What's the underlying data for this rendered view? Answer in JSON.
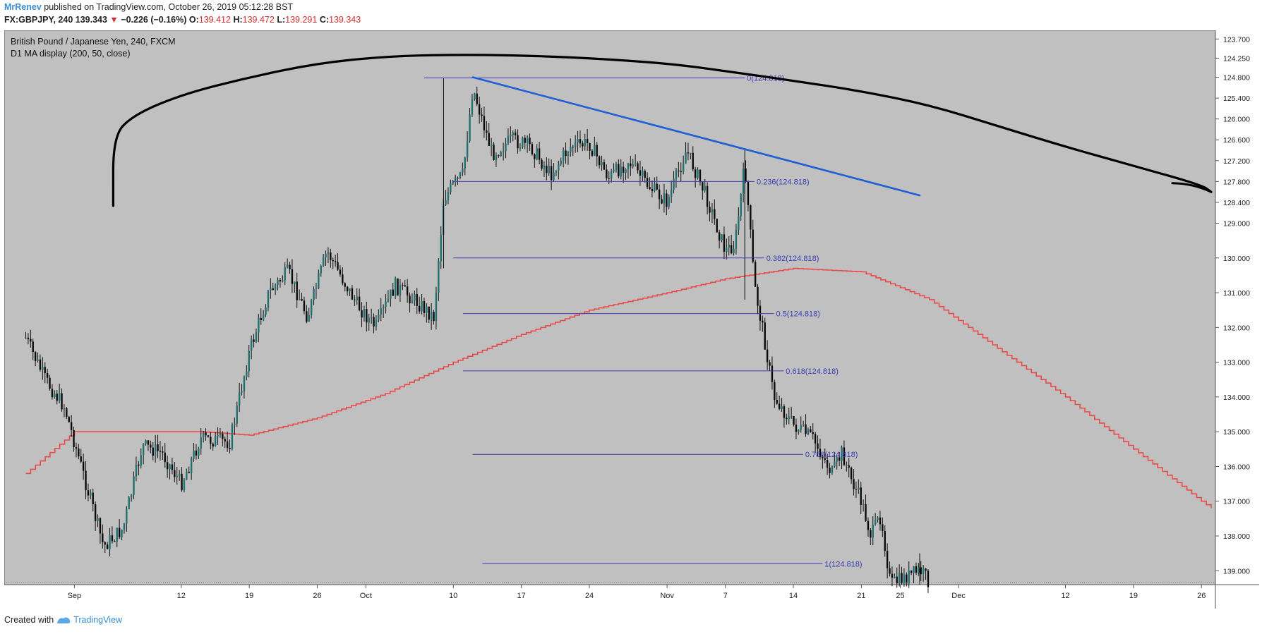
{
  "header": {
    "author": "MrRenev",
    "published_text": " published on TradingView.com, October 26, 2019 05:12:28 BST"
  },
  "quote": {
    "symbol": "FX:GBPJPY, 240",
    "last": "139.343",
    "arrow": "▼",
    "change": "−0.226 (−0.16%)",
    "open_label": "O:",
    "open": "139.412",
    "high_label": "H:",
    "high": "139.472",
    "low_label": "L:",
    "low": "139.291",
    "close_label": "C:",
    "close": "139.343"
  },
  "legend": {
    "title": "British Pound / Japanese Yen, 240, FXCM",
    "indicator": "D1 MA display (200, 50, close)"
  },
  "footer": {
    "created_with": "Created with",
    "brand": "TradingView"
  },
  "colors": {
    "background": "#c0c0c0",
    "candle": "#0b0b0b",
    "candle_accent": "#1f6f73",
    "ma_line": "#e84a4a",
    "black_curve": "#000000",
    "trendline": "#1e5fd6",
    "fib": "#3b3bb5",
    "fib_text": "#3b3bb5"
  },
  "chart_data": {
    "type": "candlestick",
    "title": "British Pound / Japanese Yen, 240, FXCM",
    "y_axis": {
      "inverted": true,
      "ylim": [
        123.45,
        139.4
      ],
      "tick_labels": [
        "123.700",
        "124.250",
        "124.800",
        "125.400",
        "126.000",
        "126.600",
        "127.200",
        "127.800",
        "128.400",
        "129.000",
        "130.000",
        "131.000",
        "132.000",
        "133.000",
        "134.000",
        "135.000",
        "136.000",
        "137.000",
        "138.000",
        "139.000"
      ],
      "tick_values": [
        123.7,
        124.25,
        124.8,
        125.4,
        126.0,
        126.6,
        127.2,
        127.8,
        128.4,
        129.0,
        130.0,
        131.0,
        132.0,
        133.0,
        134.0,
        135.0,
        136.0,
        137.0,
        138.0,
        139.0
      ]
    },
    "x_axis": {
      "tick_labels": [
        "Sep",
        "12",
        "19",
        "26",
        "Oct",
        "10",
        "17",
        "24",
        "Nov",
        "7",
        "14",
        "21",
        "25",
        "Dec",
        "12",
        "19",
        "26"
      ],
      "tick_dates": [
        "2019-09-01",
        "2019-09-12",
        "2019-09-19",
        "2019-09-26",
        "2019-10-01",
        "2019-10-10",
        "2019-10-17",
        "2019-10-24",
        "2019-11-01",
        "2019-11-07",
        "2019-11-14",
        "2019-11-21",
        "2019-11-25",
        "2019-12-01",
        "2019-12-12",
        "2019-12-19",
        "2019-12-26"
      ]
    },
    "price_path": [
      {
        "date": "2019-08-27",
        "price": 132.3
      },
      {
        "date": "2019-08-29",
        "price": 133.5
      },
      {
        "date": "2019-08-31",
        "price": 134.3
      },
      {
        "date": "2019-09-02",
        "price": 136.3
      },
      {
        "date": "2019-09-04",
        "price": 138.3
      },
      {
        "date": "2019-09-06",
        "price": 137.8
      },
      {
        "date": "2019-09-08",
        "price": 135.4
      },
      {
        "date": "2019-09-10",
        "price": 135.6
      },
      {
        "date": "2019-09-12",
        "price": 136.5
      },
      {
        "date": "2019-09-14",
        "price": 135.2
      },
      {
        "date": "2019-09-17",
        "price": 135.3
      },
      {
        "date": "2019-09-19",
        "price": 132.7
      },
      {
        "date": "2019-09-21",
        "price": 131.0
      },
      {
        "date": "2019-09-23",
        "price": 130.4
      },
      {
        "date": "2019-09-25",
        "price": 131.7
      },
      {
        "date": "2019-09-27",
        "price": 129.8
      },
      {
        "date": "2019-09-30",
        "price": 131.3
      },
      {
        "date": "2019-10-02",
        "price": 132.0
      },
      {
        "date": "2019-10-04",
        "price": 130.8
      },
      {
        "date": "2019-10-06",
        "price": 131.2
      },
      {
        "date": "2019-10-08",
        "price": 131.7
      },
      {
        "date": "2019-10-09",
        "price": 128.3
      },
      {
        "date": "2019-10-10",
        "price": 127.9
      },
      {
        "date": "2019-10-11",
        "price": 127.6
      },
      {
        "date": "2019-10-12",
        "price": 125.1
      },
      {
        "date": "2019-10-14",
        "price": 127.0
      },
      {
        "date": "2019-10-16",
        "price": 126.6
      },
      {
        "date": "2019-10-18",
        "price": 126.8
      },
      {
        "date": "2019-10-20",
        "price": 127.6
      },
      {
        "date": "2019-10-22",
        "price": 126.8
      },
      {
        "date": "2019-10-24",
        "price": 126.7
      },
      {
        "date": "2019-10-26",
        "price": 127.7
      },
      {
        "date": "2019-10-28",
        "price": 127.2
      },
      {
        "date": "2019-10-30",
        "price": 127.9
      },
      {
        "date": "2019-11-01",
        "price": 128.4
      },
      {
        "date": "2019-11-03",
        "price": 126.9
      },
      {
        "date": "2019-11-05",
        "price": 128.2
      },
      {
        "date": "2019-11-07",
        "price": 129.8
      },
      {
        "date": "2019-11-08",
        "price": 129.6
      },
      {
        "date": "2019-11-09",
        "price": 127.3
      },
      {
        "date": "2019-11-10",
        "price": 130.8
      },
      {
        "date": "2019-11-11",
        "price": 132.3
      },
      {
        "date": "2019-11-12",
        "price": 134.0
      },
      {
        "date": "2019-11-14",
        "price": 134.8
      },
      {
        "date": "2019-11-16",
        "price": 135.2
      },
      {
        "date": "2019-11-18",
        "price": 136.2
      },
      {
        "date": "2019-11-19",
        "price": 135.6
      },
      {
        "date": "2019-11-20",
        "price": 136.4
      },
      {
        "date": "2019-11-21",
        "price": 137.0
      },
      {
        "date": "2019-11-22",
        "price": 138.0
      },
      {
        "date": "2019-11-23",
        "price": 137.4
      },
      {
        "date": "2019-11-24",
        "price": 139.4
      },
      {
        "date": "2019-11-27",
        "price": 139.0
      },
      {
        "date": "2019-11-28",
        "price": 139.3
      }
    ],
    "ma_line": [
      {
        "date": "2019-08-27",
        "price": 136.2
      },
      {
        "date": "2019-09-01",
        "price": 135.0
      },
      {
        "date": "2019-09-05",
        "price": 135.0
      },
      {
        "date": "2019-09-14",
        "price": 135.0
      },
      {
        "date": "2019-09-19",
        "price": 135.1
      },
      {
        "date": "2019-09-26",
        "price": 134.6
      },
      {
        "date": "2019-10-03",
        "price": 133.9
      },
      {
        "date": "2019-10-10",
        "price": 133.0
      },
      {
        "date": "2019-10-17",
        "price": 132.2
      },
      {
        "date": "2019-10-24",
        "price": 131.5
      },
      {
        "date": "2019-11-01",
        "price": 131.0
      },
      {
        "date": "2019-11-07",
        "price": 130.6
      },
      {
        "date": "2019-11-14",
        "price": 130.3
      },
      {
        "date": "2019-11-21",
        "price": 130.4
      },
      {
        "date": "2019-11-28",
        "price": 131.2
      },
      {
        "date": "2019-12-05",
        "price": 132.6
      },
      {
        "date": "2019-12-12",
        "price": 134.0
      },
      {
        "date": "2019-12-19",
        "price": 135.5
      },
      {
        "date": "2019-12-26",
        "price": 137.0
      },
      {
        "date": "2019-12-27",
        "price": 137.2
      }
    ],
    "black_curve": [
      {
        "date": "2019-09-05",
        "price": 128.5
      },
      {
        "date": "2019-09-05",
        "price": 126.5
      },
      {
        "date": "2019-09-07",
        "price": 125.9
      },
      {
        "date": "2019-09-12",
        "price": 125.3
      },
      {
        "date": "2019-09-19",
        "price": 124.8
      },
      {
        "date": "2019-09-26",
        "price": 124.4
      },
      {
        "date": "2019-10-03",
        "price": 124.2
      },
      {
        "date": "2019-10-10",
        "price": 124.15
      },
      {
        "date": "2019-10-17",
        "price": 124.17
      },
      {
        "date": "2019-10-24",
        "price": 124.25
      },
      {
        "date": "2019-11-01",
        "price": 124.4
      },
      {
        "date": "2019-11-07",
        "price": 124.62
      },
      {
        "date": "2019-11-14",
        "price": 124.9
      },
      {
        "date": "2019-11-21",
        "price": 125.2
      },
      {
        "date": "2019-11-28",
        "price": 125.6
      },
      {
        "date": "2019-12-05",
        "price": 126.2
      },
      {
        "date": "2019-12-12",
        "price": 126.8
      },
      {
        "date": "2019-12-19",
        "price": 127.35
      },
      {
        "date": "2019-12-26",
        "price": 127.9
      },
      {
        "date": "2019-12-27",
        "price": 128.1
      }
    ],
    "trendline": {
      "from": {
        "date": "2019-10-12",
        "price": 124.8
      },
      "to": {
        "date": "2019-11-27",
        "price": 128.2
      }
    },
    "fib_levels": [
      {
        "label": "0(124.818)",
        "price": 124.82,
        "start": "2019-10-07",
        "end": "2019-11-09"
      },
      {
        "label": "0.236(124.818)",
        "price": 127.8,
        "start": "2019-10-10",
        "end": "2019-11-10"
      },
      {
        "label": "0.382(124.818)",
        "price": 130.0,
        "start": "2019-10-10",
        "end": "2019-11-11"
      },
      {
        "label": "0.5(124.818)",
        "price": 131.6,
        "start": "2019-10-11",
        "end": "2019-11-12"
      },
      {
        "label": "0.618(124.818)",
        "price": 133.25,
        "start": "2019-10-11",
        "end": "2019-11-13"
      },
      {
        "label": "0.786(124.818)",
        "price": 135.65,
        "start": "2019-10-12",
        "end": "2019-11-15"
      },
      {
        "label": "1(124.818)",
        "price": 138.8,
        "start": "2019-10-13",
        "end": "2019-11-17"
      }
    ],
    "grid": false,
    "legend": "top-left"
  }
}
